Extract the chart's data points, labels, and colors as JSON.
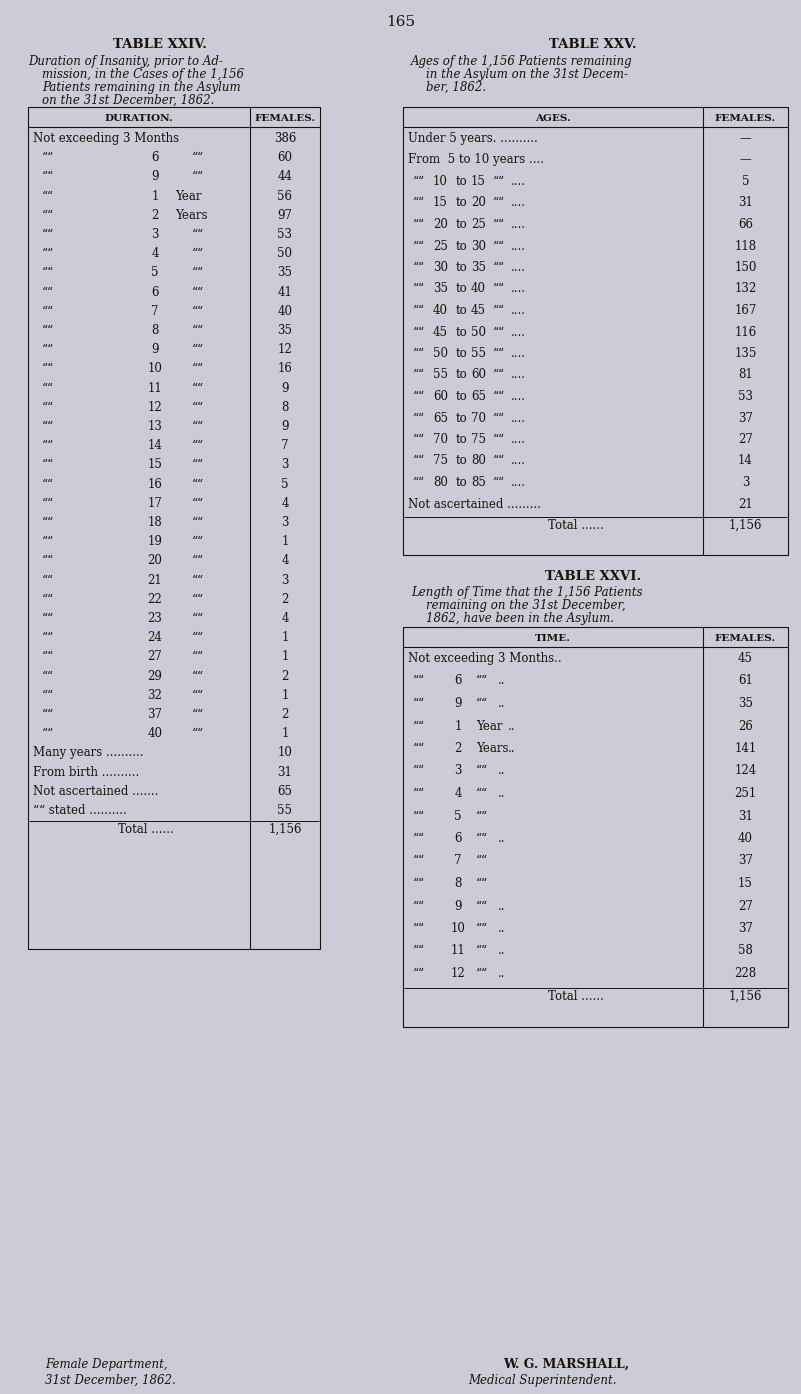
{
  "page_number": "165",
  "bg_color": "#ccccd8",
  "text_color": "#1a1208",
  "table24": {
    "title": "TABLE XXIV.",
    "subtitle": [
      "Duration of Insanity, prior to Ad-",
      "mission, in the Cases of the 1,156",
      "Patients remaining in the Asylum",
      "on the 31st December, 1862."
    ],
    "col1_header": "DURATION.",
    "col2_header": "FEMALES.",
    "rows": [
      [
        "Not exceeding 3 Months",
        "386"
      ],
      [
        ",, 6 ,,",
        "60"
      ],
      [
        ",, 9 ,,",
        "44"
      ],
      [
        ",, 1 Year",
        "56"
      ],
      [
        ",, 2 Years",
        "97"
      ],
      [
        ",, 3 ,,",
        "53"
      ],
      [
        ",, 4 ,,",
        "50"
      ],
      [
        ",, 5 ,,",
        "35"
      ],
      [
        ",, 6 ,,",
        "41"
      ],
      [
        ",, 7 ,,",
        "40"
      ],
      [
        ",, 8 ,,",
        "35"
      ],
      [
        ",, 9 ,,",
        "12"
      ],
      [
        ",, 10 ,,",
        "16"
      ],
      [
        ",, 11 ,,",
        "9"
      ],
      [
        ",, 12 ,,",
        "8"
      ],
      [
        ",, 13 ,,",
        "9"
      ],
      [
        ",, 14 ,,",
        "7"
      ],
      [
        ",, 15 ,,",
        "3"
      ],
      [
        ",, 16 ,,",
        "5"
      ],
      [
        ",, 17 ,,",
        "4"
      ],
      [
        ",, 18 ,,",
        "3"
      ],
      [
        ",, 19 ,,",
        "1"
      ],
      [
        ",, 20 ,,",
        "4"
      ],
      [
        ",, 21 ,,",
        "3"
      ],
      [
        ",, 22 ,,",
        "2"
      ],
      [
        ",, 23 ,,",
        "4"
      ],
      [
        ",, 24 ,,",
        "1"
      ],
      [
        ",, 27 ,,",
        "1"
      ],
      [
        ",, 29 ,,",
        "2"
      ],
      [
        ",, 32 ,,",
        "1"
      ],
      [
        ",, 37 ,,",
        "2"
      ],
      [
        ",, 40 ,,",
        "1"
      ],
      [
        "Many years ..........",
        "10"
      ],
      [
        "From birth ..........",
        "31"
      ],
      [
        "Not ascertained .......",
        "65"
      ],
      [
        ",, stated ..........",
        "55"
      ],
      [
        "Total ......",
        "1,156"
      ]
    ]
  },
  "table25": {
    "title": "TABLE XXV.",
    "subtitle": [
      "Ages of the 1,156 Patients remaining",
      "in the Asylum on the 31st Decem-",
      "ber, 1862."
    ],
    "col1_header": "AGES.",
    "col2_header": "FEMALES.",
    "rows": [
      [
        "Under 5 years. ..........",
        "--"
      ],
      [
        "From  5 to 10 years ....",
        "--"
      ],
      [
        ",, 10 to 15 ,, ....",
        "5"
      ],
      [
        ",, 15 to 20 ,, ....",
        "31"
      ],
      [
        ",, 20 to 25 ,, ....",
        "66"
      ],
      [
        ",, 25 to 30 ,, ....",
        "118"
      ],
      [
        ",, 30 to 35 ,, ....",
        "150"
      ],
      [
        ",, 35 to 40 ,, ....",
        "132"
      ],
      [
        ",, 40 to 45 ,, ....",
        "167"
      ],
      [
        ",, 45 to 50 ,, ....",
        "116"
      ],
      [
        ",, 50 to 55 ,, ....",
        "135"
      ],
      [
        ",, 55 to 60 ,, ....",
        "81"
      ],
      [
        ",, 60 to 65 ,, ....",
        "53"
      ],
      [
        ",, 65 to 70 ,, ....",
        "37"
      ],
      [
        ",, 70 to 75 ,, ....",
        "27"
      ],
      [
        ",, 75 to 80 ,, ....",
        "14"
      ],
      [
        ",, 80 to 85 ,, ....",
        "3"
      ],
      [
        "Not ascertained .........",
        "21"
      ],
      [
        "Total ......",
        "1,156"
      ]
    ]
  },
  "table26": {
    "title": "TABLE XXVI.",
    "subtitle": [
      "Length of Time that the 1,156 Patients",
      "remaining on the 31st December,",
      "1862, have been in the Asylum."
    ],
    "col1_header": "TIME.",
    "col2_header": "FEMALES.",
    "rows": [
      [
        "Not exceeding 3 Months..",
        "45"
      ],
      [
        ",, 6 ,, ..",
        "61"
      ],
      [
        ",, 9 ,, ..",
        "35"
      ],
      [
        ",, 1 Year ..",
        "26"
      ],
      [
        ",, 2 Years ..",
        "141"
      ],
      [
        ",, 3 ,, ..",
        "124"
      ],
      [
        ",, 4 ,, ..",
        "251"
      ],
      [
        ",, 5 ,,",
        "31"
      ],
      [
        ",, 6 ,, ..",
        "40"
      ],
      [
        ",, 7 ,,",
        "37"
      ],
      [
        ",, 8 ,,",
        "15"
      ],
      [
        ",, 9 ,, ..",
        "27"
      ],
      [
        ",, 10 ,, ..",
        "37"
      ],
      [
        ",, 11 ,, ..",
        "58"
      ],
      [
        ",, 12 ,, ..",
        "228"
      ],
      [
        "Total ......",
        "1,156"
      ]
    ]
  },
  "footer_left": [
    "Female Department,",
    "31st December, 1862."
  ],
  "footer_right": [
    "W. G. MARSHALL,",
    "Medical Superintendent."
  ]
}
